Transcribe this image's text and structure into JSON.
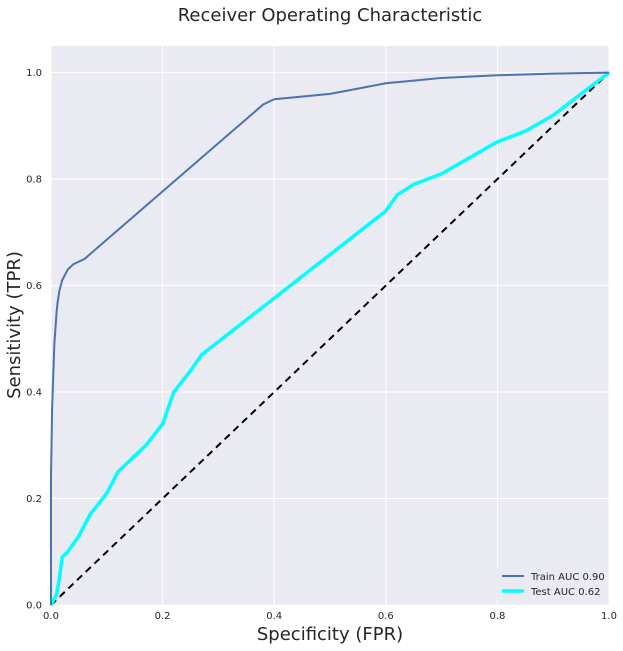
{
  "chart_data": {
    "type": "line",
    "title": "Receiver Operating Characteristic",
    "xlabel": "Specificity (FPR)",
    "ylabel": "Sensitivity (TPR)",
    "xlim": [
      0,
      1
    ],
    "ylim": [
      0,
      1.05
    ],
    "x_ticks": [
      "0.0",
      "0.2",
      "0.4",
      "0.6",
      "0.8",
      "1.0"
    ],
    "y_ticks": [
      "0.0",
      "0.2",
      "0.4",
      "0.6",
      "0.8",
      "1.0"
    ],
    "grid": true,
    "legend_position": "bottom-right",
    "series": [
      {
        "name": "Train AUC 0.90",
        "color": "#4c72b0",
        "x": [
          0.0,
          0.0,
          0.002,
          0.004,
          0.006,
          0.008,
          0.01,
          0.012,
          0.015,
          0.02,
          0.025,
          0.03,
          0.04,
          0.05,
          0.06,
          0.38,
          0.39,
          0.4,
          0.5,
          0.55,
          0.6,
          0.65,
          0.7,
          0.8,
          0.9,
          1.0
        ],
        "y": [
          0.0,
          0.24,
          0.37,
          0.43,
          0.49,
          0.52,
          0.55,
          0.57,
          0.59,
          0.61,
          0.62,
          0.63,
          0.64,
          0.645,
          0.65,
          0.94,
          0.945,
          0.95,
          0.96,
          0.97,
          0.98,
          0.985,
          0.99,
          0.995,
          0.998,
          1.0
        ]
      },
      {
        "name": "Test AUC 0.62",
        "color": "#00ffff",
        "x": [
          0.0,
          0.01,
          0.015,
          0.02,
          0.03,
          0.05,
          0.07,
          0.1,
          0.12,
          0.15,
          0.17,
          0.2,
          0.22,
          0.25,
          0.27,
          0.6,
          0.62,
          0.65,
          0.7,
          0.75,
          0.8,
          0.85,
          0.9,
          0.95,
          1.0
        ],
        "y": [
          0.0,
          0.02,
          0.05,
          0.09,
          0.1,
          0.13,
          0.17,
          0.21,
          0.25,
          0.28,
          0.3,
          0.34,
          0.4,
          0.44,
          0.47,
          0.74,
          0.77,
          0.79,
          0.81,
          0.84,
          0.87,
          0.89,
          0.92,
          0.96,
          1.0
        ]
      },
      {
        "name": "",
        "color": "#000000",
        "dashed": true,
        "x": [
          0,
          1
        ],
        "y": [
          0,
          1
        ]
      }
    ]
  }
}
